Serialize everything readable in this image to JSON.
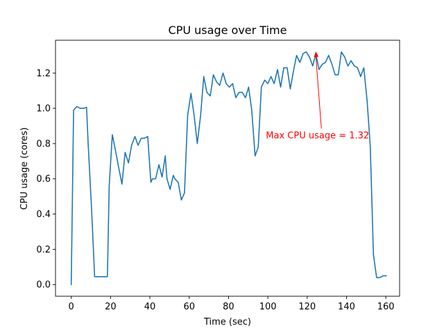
{
  "chart_data": {
    "type": "line",
    "title": "CPU usage over Time",
    "xlabel": "Time (sec)",
    "ylabel": "CPU usage (cores)",
    "xlim": [
      -8,
      167
    ],
    "ylim": [
      -0.066,
      1.386
    ],
    "xticks": [
      0,
      20,
      40,
      60,
      80,
      100,
      120,
      140,
      160
    ],
    "yticks": [
      0.0,
      0.2,
      0.4,
      0.6,
      0.8,
      1.0,
      1.2
    ],
    "xtick_labels": [
      "0",
      "20",
      "40",
      "60",
      "80",
      "100",
      "120",
      "140",
      "160"
    ],
    "ytick_labels": [
      "0.0",
      "0.2",
      "0.4",
      "0.6",
      "0.8",
      "1.0",
      "1.2"
    ],
    "grid": false,
    "series": [
      {
        "color": "#1f77b4",
        "x": [
          0,
          1.2,
          2.9,
          4.5,
          6.2,
          7.8,
          8.6,
          10.3,
          11.9,
          13.5,
          15.1,
          16.8,
          18.4,
          19.3,
          20.9,
          22.5,
          24.2,
          25.8,
          27.4,
          29.1,
          30.7,
          32.4,
          34.0,
          35.6,
          37.2,
          38.9,
          40.5,
          41.3,
          42.9,
          44.6,
          46.2,
          47.8,
          48.7,
          50.3,
          51.9,
          52.7,
          54.4,
          56.0,
          57.6,
          59.2,
          60.9,
          62.5,
          64.1,
          65.8,
          67.4,
          69.0,
          70.7,
          72.3,
          73.9,
          75.5,
          77.2,
          78.8,
          80.4,
          82.1,
          83.7,
          85.3,
          87.0,
          88.6,
          90.2,
          91.8,
          93.5,
          95.1,
          96.7,
          98.4,
          100.0,
          101.6,
          103.2,
          104.9,
          106.5,
          108.1,
          109.8,
          111.4,
          113.0,
          114.6,
          116.3,
          117.9,
          119.5,
          121.2,
          122.8,
          124.4,
          126.0,
          127.7,
          129.3,
          130.9,
          132.6,
          134.2,
          135.8,
          137.4,
          139.1,
          140.7,
          142.3,
          144.0,
          145.6,
          147.2,
          148.8,
          150.5,
          152.1,
          153.7,
          155.3,
          157.0,
          158.6,
          160.2
        ],
        "y": [
          0.0,
          0.99,
          1.01,
          1.0,
          1.0,
          1.005,
          0.8,
          0.44,
          0.045,
          0.045,
          0.045,
          0.045,
          0.045,
          0.56,
          0.85,
          0.76,
          0.66,
          0.57,
          0.75,
          0.69,
          0.79,
          0.84,
          0.79,
          0.83,
          0.83,
          0.84,
          0.58,
          0.6,
          0.6,
          0.68,
          0.61,
          0.73,
          0.6,
          0.54,
          0.62,
          0.6,
          0.58,
          0.48,
          0.52,
          0.96,
          1.085,
          0.96,
          0.8,
          0.96,
          1.18,
          1.09,
          1.07,
          1.19,
          1.15,
          1.13,
          1.2,
          1.14,
          1.12,
          1.14,
          1.06,
          1.09,
          1.09,
          1.06,
          1.12,
          0.99,
          0.73,
          0.78,
          1.12,
          1.16,
          1.14,
          1.18,
          1.14,
          1.22,
          1.12,
          1.23,
          1.23,
          1.11,
          1.21,
          1.3,
          1.26,
          1.31,
          1.32,
          1.29,
          1.24,
          1.31,
          1.22,
          1.25,
          1.26,
          1.3,
          1.25,
          1.19,
          1.19,
          1.32,
          1.29,
          1.24,
          1.27,
          1.24,
          1.23,
          1.18,
          1.23,
          1.04,
          0.78,
          0.17,
          0.04,
          0.04,
          0.05,
          0.05
        ]
      }
    ],
    "annotation": {
      "text": "Max CPU usage = 1.32",
      "color": "#ff0000",
      "point": [
        124.4,
        1.32
      ],
      "text_position": [
        99,
        0.83
      ]
    }
  }
}
